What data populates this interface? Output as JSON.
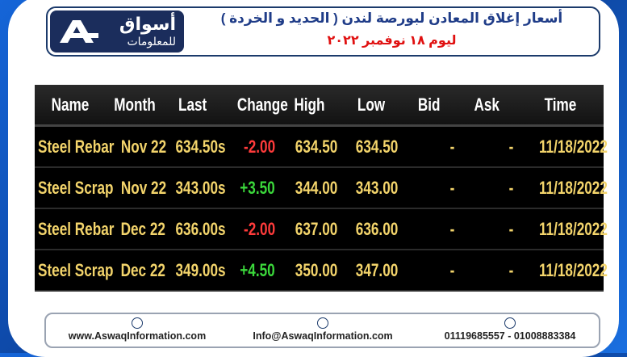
{
  "header": {
    "title": "أسعار إغلاق المعادن لبورصة لندن ( الحديد و الخردة )",
    "date": "ليوم ١٨ نوفمبر ٢٠٢٢"
  },
  "logo": {
    "line1": "أسواق",
    "line2": "للمعلومات"
  },
  "table": {
    "columns": [
      "Name",
      "Month",
      "Last",
      "Change",
      "High",
      "Low",
      "Bid",
      "Ask",
      "Time"
    ],
    "rows": [
      [
        "Steel Rebar",
        "Nov 22",
        "634.50s",
        "-2.00",
        "634.50",
        "634.50",
        "-",
        "-",
        "11/18/2022"
      ],
      [
        "Steel Scrap",
        "Nov 22",
        "343.00s",
        "+3.50",
        "344.00",
        "343.00",
        "-",
        "-",
        "11/18/2022"
      ],
      [
        "Steel Rebar",
        "Dec 22",
        "636.00s",
        "-2.00",
        "637.00",
        "636.00",
        "-",
        "-",
        "11/18/2022"
      ],
      [
        "Steel Scrap",
        "Dec 22",
        "349.00s",
        "+4.50",
        "350.00",
        "347.00",
        "-",
        "-",
        "11/18/2022"
      ]
    ]
  },
  "footer": {
    "website": "www.AswaqInformation.com",
    "email": "Info@AswaqInformation.com",
    "phones": "01119685557 - 01008883384"
  }
}
